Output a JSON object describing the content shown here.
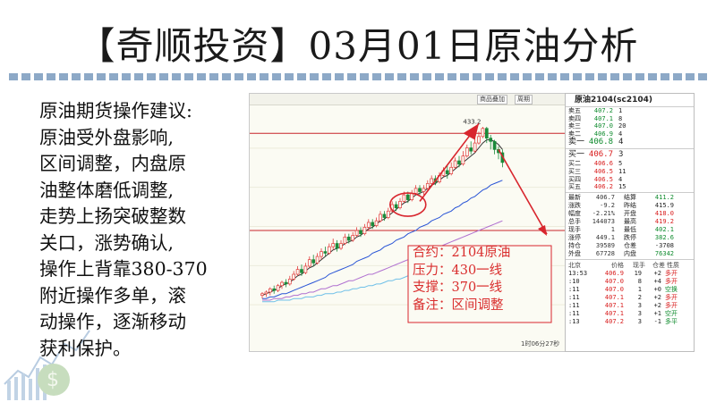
{
  "title": "【奇顺投资】03月01日原油分析",
  "advice_lines": [
    "原油期货操作建议:",
    "原油受外盘影响,",
    "区间调整，内盘原",
    "油整体磨低调整,",
    "走势上扬突破整数",
    "关口，涨势确认,",
    "操作上背靠380-370",
    "附近操作多单，滚",
    "动操作，逐渐移动",
    "获利保护。"
  ],
  "chart": {
    "toolbar": {
      "btn1": "商品叠加",
      "btn2": "周期",
      "btn3": ""
    },
    "peak_label": "433.2",
    "time_label": "1时06分27秒",
    "colors": {
      "up": "#e23b3b",
      "down": "#1b8a3a",
      "ma1": "#333333",
      "ma2": "#2a55d6",
      "ma3": "#b070d0",
      "ma4": "#6fc0e8"
    },
    "candles": [
      [
        330,
        331,
        328,
        332
      ],
      [
        331,
        332,
        329,
        333
      ],
      [
        332,
        334,
        330,
        335
      ],
      [
        334,
        333,
        331,
        336
      ],
      [
        333,
        336,
        332,
        337
      ],
      [
        336,
        338,
        334,
        339
      ],
      [
        338,
        337,
        335,
        340
      ],
      [
        337,
        340,
        336,
        342
      ],
      [
        340,
        343,
        339,
        345
      ],
      [
        343,
        346,
        342,
        348
      ],
      [
        346,
        344,
        342,
        349
      ],
      [
        344,
        348,
        343,
        350
      ],
      [
        348,
        352,
        347,
        354
      ],
      [
        352,
        350,
        348,
        355
      ],
      [
        350,
        354,
        349,
        356
      ],
      [
        354,
        357,
        352,
        359
      ],
      [
        357,
        356,
        354,
        360
      ],
      [
        356,
        360,
        355,
        362
      ],
      [
        360,
        362,
        358,
        365
      ],
      [
        362,
        359,
        357,
        364
      ],
      [
        359,
        362,
        358,
        364
      ],
      [
        362,
        366,
        361,
        368
      ],
      [
        366,
        364,
        362,
        368
      ],
      [
        364,
        367,
        363,
        369
      ],
      [
        367,
        370,
        366,
        372
      ],
      [
        370,
        368,
        366,
        372
      ],
      [
        368,
        372,
        367,
        374
      ],
      [
        372,
        375,
        370,
        377
      ],
      [
        375,
        373,
        371,
        377
      ],
      [
        373,
        376,
        372,
        378
      ],
      [
        376,
        380,
        375,
        382
      ],
      [
        380,
        378,
        376,
        382
      ],
      [
        378,
        382,
        377,
        384
      ],
      [
        382,
        386,
        381,
        388
      ],
      [
        386,
        384,
        382,
        388
      ],
      [
        384,
        388,
        383,
        390
      ],
      [
        388,
        392,
        387,
        394
      ],
      [
        392,
        389,
        387,
        394
      ],
      [
        389,
        393,
        388,
        395
      ],
      [
        393,
        396,
        392,
        398
      ],
      [
        396,
        394,
        392,
        398
      ],
      [
        394,
        396,
        392,
        398
      ],
      [
        396,
        399,
        395,
        401
      ],
      [
        399,
        402,
        398,
        404
      ],
      [
        402,
        400,
        398,
        404
      ],
      [
        400,
        404,
        399,
        406
      ],
      [
        404,
        407,
        403,
        409
      ],
      [
        407,
        405,
        402,
        410
      ],
      [
        405,
        409,
        404,
        412
      ],
      [
        409,
        413,
        408,
        415
      ],
      [
        413,
        411,
        409,
        416
      ],
      [
        411,
        416,
        410,
        419
      ],
      [
        416,
        421,
        415,
        423
      ],
      [
        421,
        419,
        417,
        425
      ],
      [
        419,
        424,
        418,
        427
      ],
      [
        424,
        428,
        423,
        431
      ],
      [
        428,
        433,
        427,
        434
      ],
      [
        433,
        427,
        424,
        434
      ],
      [
        427,
        425,
        420,
        429
      ],
      [
        425,
        420,
        417,
        426
      ],
      [
        420,
        418,
        414,
        422
      ],
      [
        418,
        412,
        409,
        420
      ]
    ],
    "ma_series": {
      "ma1": [
        330,
        331,
        332,
        333,
        334,
        336,
        337,
        338,
        340,
        342,
        343,
        345,
        347,
        348,
        350,
        352,
        354,
        356,
        358,
        359,
        360,
        362,
        363,
        364,
        366,
        367,
        369,
        371,
        372,
        374,
        376,
        377,
        379,
        381,
        383,
        385,
        387,
        388,
        390,
        392,
        393,
        394,
        396,
        398,
        399,
        401,
        403,
        404,
        406,
        408,
        410,
        412,
        414,
        416,
        418,
        421,
        424,
        426,
        426,
        425,
        423,
        420
      ],
      "ma2": [
        328,
        328,
        329,
        329,
        330,
        331,
        331,
        332,
        333,
        334,
        335,
        336,
        337,
        338,
        339,
        340,
        341,
        343,
        344,
        345,
        346,
        347,
        348,
        349,
        351,
        352,
        353,
        354,
        356,
        357,
        358,
        360,
        361,
        362,
        364,
        365,
        366,
        368,
        369,
        370,
        372,
        373,
        374,
        376,
        377,
        378,
        380,
        381,
        382,
        384,
        385,
        387,
        388,
        390,
        391,
        393,
        395,
        396,
        398,
        399,
        400,
        401
      ],
      "ma3": [
        327,
        327,
        327,
        328,
        328,
        328,
        329,
        329,
        330,
        330,
        331,
        331,
        332,
        332,
        333,
        334,
        334,
        335,
        336,
        336,
        337,
        338,
        339,
        339,
        340,
        341,
        342,
        343,
        343,
        344,
        345,
        346,
        347,
        348,
        349,
        350,
        351,
        352,
        353,
        354,
        355,
        356,
        357,
        358,
        359,
        360,
        361,
        362,
        363,
        364,
        365,
        366,
        367,
        368,
        369,
        370,
        371,
        372,
        373,
        374,
        375,
        376
      ],
      "ma4": [
        326,
        326,
        326,
        326,
        327,
        327,
        327,
        327,
        328,
        328,
        328,
        329,
        329,
        329,
        330,
        330,
        331,
        331,
        331,
        332,
        332,
        333,
        333,
        334,
        334,
        335,
        335,
        336,
        336,
        337,
        337,
        338,
        339,
        339,
        340,
        340,
        341,
        342,
        342,
        343,
        344,
        344,
        345,
        346,
        346,
        347,
        348,
        348,
        349,
        350,
        351,
        351,
        352,
        353,
        354,
        355,
        355,
        356,
        357,
        358,
        359,
        360
      ]
    },
    "y_range": [
      300,
      445
    ],
    "hlines": [
      430,
      370
    ]
  },
  "notes": {
    "line1": "合约：2104原油",
    "line2": "压力：430一线",
    "line3": "支撑：370一线",
    "line4": "备注：区间调整"
  },
  "quote": {
    "title": "原油2104(sc2104)",
    "asks": [
      {
        "label": "卖五",
        "price": "407.2",
        "vol": "1"
      },
      {
        "label": "卖四",
        "price": "407.1",
        "vol": "8"
      },
      {
        "label": "卖三",
        "price": "407.0",
        "vol": "20"
      },
      {
        "label": "卖二",
        "price": "406.9",
        "vol": "4"
      },
      {
        "label": "卖一",
        "price": "406.8",
        "vol": "4"
      }
    ],
    "bids": [
      {
        "label": "买一",
        "price": "406.7",
        "vol": "3"
      },
      {
        "label": "买二",
        "price": "406.6",
        "vol": "5"
      },
      {
        "label": "买三",
        "price": "406.5",
        "vol": "11"
      },
      {
        "label": "买四",
        "price": "406.5",
        "vol": "4"
      },
      {
        "label": "买五",
        "price": "406.2",
        "vol": "15"
      }
    ],
    "stats": [
      {
        "l": "最新",
        "a": "406.7",
        "l2": "结算",
        "b": "411.2",
        "ac": "red",
        "bc": "green"
      },
      {
        "l": "涨跌",
        "a": "-9.2",
        "l2": "昨结",
        "b": "415.9",
        "ac": "green",
        "bc": ""
      },
      {
        "l": "幅度",
        "a": "-2.21%",
        "l2": "开盘",
        "b": "418.0",
        "ac": "green",
        "bc": "red"
      },
      {
        "l": "总手",
        "a": "144073",
        "l2": "最高",
        "b": "419.2",
        "ac": "",
        "bc": "red"
      },
      {
        "l": "现手",
        "a": "1",
        "l2": "最低",
        "b": "402.1",
        "ac": "",
        "bc": "green"
      },
      {
        "l": "涨停",
        "a": "449.1",
        "l2": "跌停",
        "b": "382.6",
        "ac": "red",
        "bc": "green"
      },
      {
        "l": "持仓",
        "a": "39589",
        "l2": "仓差",
        "b": "-3708",
        "ac": "",
        "bc": ""
      },
      {
        "l": "外盘",
        "a": "67728",
        "l2": "内盘",
        "b": "76342",
        "ac": "red",
        "bc": "green"
      }
    ],
    "ticks_header": {
      "loc": "北京",
      "price": "价格",
      "vol": "现手",
      "oi": "仓差",
      "nature": "性质"
    },
    "ticks": [
      {
        "t": "13:53",
        "p": "406.9",
        "v": "19",
        "o": "+2",
        "n": "多开",
        "nc": "red"
      },
      {
        "t": ":10",
        "p": "407.0",
        "v": "8",
        "o": "+4",
        "n": "多开",
        "nc": "red"
      },
      {
        "t": ":11",
        "p": "407.0",
        "v": "1",
        "o": "+0",
        "n": "空换",
        "nc": "green"
      },
      {
        "t": ":11",
        "p": "407.1",
        "v": "2",
        "o": "+2",
        "n": "多开",
        "nc": "red"
      },
      {
        "t": ":11",
        "p": "407.1",
        "v": "3",
        "o": "+2",
        "n": "多开",
        "nc": "red"
      },
      {
        "t": ":11",
        "p": "407.1",
        "v": "3",
        "o": "+1",
        "n": "空开",
        "nc": "green"
      },
      {
        "t": ":13",
        "p": "407.2",
        "v": "3",
        "o": "-1",
        "n": "多平",
        "nc": "green"
      }
    ]
  }
}
